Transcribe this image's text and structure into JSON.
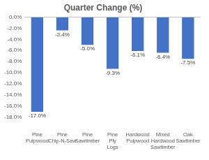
{
  "chart_data": {
    "type": "bar",
    "title": "Quarter Change (%)",
    "categories": [
      "Pine Pulpwood",
      "Pine Chip-N-Saw",
      "Pine Sawtimber",
      "Pine Ply Logs",
      "Hardwood Pulpwood",
      "Mixed Hardwood Sawtimber",
      "Oak Sawtimber"
    ],
    "values": [
      -17.0,
      -2.4,
      -5.0,
      -9.3,
      -6.1,
      -6.4,
      -7.5
    ],
    "value_labels": [
      "-17.0%",
      "-2.4%",
      "-5.0%",
      "-9.3%",
      "-6.1%",
      "-6.4%",
      "-7.5%"
    ],
    "color": "#4472c4",
    "ylim": [
      -18,
      0
    ],
    "yticks": [
      {
        "value": 0,
        "label": "0.0%"
      },
      {
        "value": -2,
        "label": "-2.0%"
      },
      {
        "value": -4,
        "label": "-4.0%"
      },
      {
        "value": -6,
        "label": "-6.0%"
      },
      {
        "value": -8,
        "label": "-8.0%"
      },
      {
        "value": -10,
        "label": "-10.0%"
      },
      {
        "value": -12,
        "label": "-12.0%"
      },
      {
        "value": -14,
        "label": "-14.0%"
      },
      {
        "value": -16,
        "label": "-16.0%"
      },
      {
        "value": -18,
        "label": "-18.0%"
      }
    ],
    "grid": false,
    "data_labels": true
  }
}
